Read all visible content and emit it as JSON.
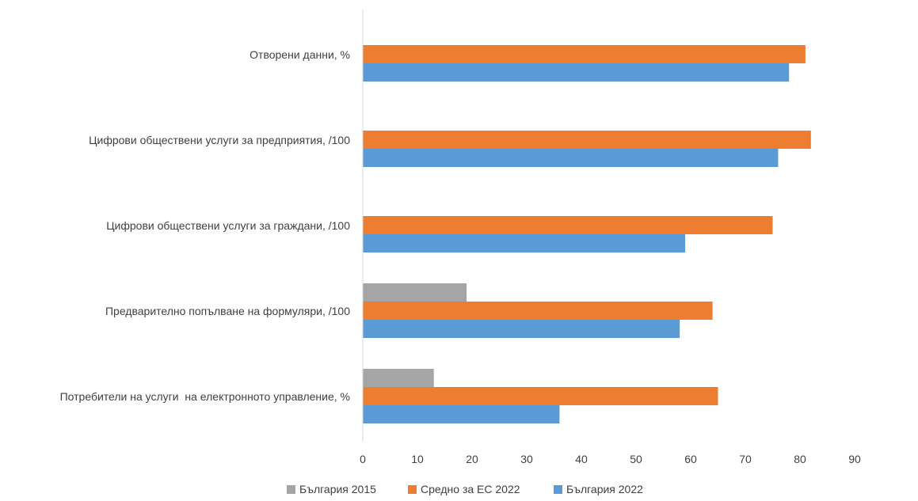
{
  "chart_data": {
    "type": "bar",
    "orientation": "horizontal",
    "categories": [
      "Отворени данни, %",
      "Цифрови обществени услуги за предприятия, /100",
      "Цифрови обществени услуги за граждани, /100",
      "Предварително попълване на формуляри, /100",
      "Потребители на услуги  на електронното управление, %"
    ],
    "series": [
      {
        "name": "България 2015",
        "color": "#a5a5a5",
        "values": [
          null,
          null,
          null,
          19,
          13
        ]
      },
      {
        "name": "Средно за ЕС 2022",
        "color": "#ed7d31",
        "values": [
          81,
          82,
          75,
          64,
          65
        ]
      },
      {
        "name": "България 2022",
        "color": "#5b9bd5",
        "values": [
          78,
          76,
          59,
          58,
          36
        ]
      }
    ],
    "xlim": [
      0,
      90
    ],
    "x_ticks": [
      "0",
      "10",
      "20",
      "30",
      "40",
      "50",
      "60",
      "70",
      "80",
      "90"
    ],
    "grid": false,
    "legend_position": "bottom"
  }
}
